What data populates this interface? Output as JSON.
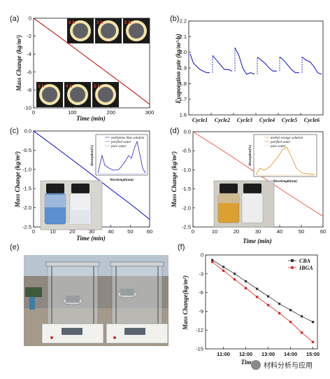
{
  "panels": {
    "a": "(a)",
    "b": "(b)",
    "c": "(c)",
    "d": "(d)",
    "e": "(e)",
    "f": "(f)"
  },
  "watermark": "材料分析与应用",
  "chart_data": [
    {
      "id": "a",
      "type": "line",
      "xlabel": "Time (min)",
      "ylabel": "Mass Change (kg/m²)",
      "xlim": [
        0,
        300
      ],
      "ylim": [
        -10,
        0
      ],
      "xticks": [
        "0",
        "100",
        "200",
        "300"
      ],
      "yticks": [
        "0",
        "-2",
        "-4",
        "-6",
        "-8",
        "-10"
      ],
      "color": "#c0282d",
      "series": [
        {
          "x": [
            0,
            50,
            100,
            150,
            200,
            250,
            300
          ],
          "y": [
            0,
            -1.55,
            -3.15,
            -4.75,
            -6.35,
            -7.95,
            -9.6
          ]
        }
      ],
      "photo_labels": [
        "0 h",
        "1 h",
        "2 h",
        "3 h",
        "4 h",
        "5 h"
      ]
    },
    {
      "id": "b",
      "type": "line",
      "ylabel": "Evaporation rate (kg/m²·h)",
      "ylim": [
        1.6,
        2.2
      ],
      "yticks": [
        "2.2",
        "2.1",
        "2.0",
        "1.9",
        "1.8",
        "1.7",
        "1.6"
      ],
      "categories": [
        "Cycle1",
        "Cycle2",
        "Cycle3",
        "Cycle4",
        "Cycle5",
        "Cycle6"
      ],
      "color": "#1f1fd0",
      "cycles": [
        [
          1.99,
          1.93,
          1.91,
          1.89,
          1.88,
          1.87,
          1.87
        ],
        [
          1.98,
          1.95,
          1.92,
          1.89,
          1.89,
          1.88
        ],
        [
          2.03,
          1.98,
          1.9,
          1.86,
          1.87,
          1.86
        ],
        [
          1.97,
          1.95,
          1.93,
          1.9,
          1.88,
          1.88
        ],
        [
          1.97,
          1.95,
          1.92,
          1.89,
          1.87,
          1.87
        ],
        [
          1.97,
          1.95,
          1.94,
          1.91,
          1.87,
          1.86
        ]
      ]
    },
    {
      "id": "c",
      "type": "line",
      "xlabel": "Time (min)",
      "ylabel": "Mass Change (kg/m²)",
      "xlim": [
        0,
        60
      ],
      "ylim": [
        -2.5,
        0
      ],
      "xticks": [
        "0",
        "10",
        "20",
        "30",
        "40",
        "50",
        "60"
      ],
      "yticks": [
        "0.0",
        "-0.5",
        "-1.0",
        "-1.5",
        "-2.0",
        "-2.5"
      ],
      "color": "#1f1fd0",
      "series": [
        {
          "x": [
            0,
            10,
            20,
            30,
            40,
            50,
            60
          ],
          "y": [
            0,
            -0.37,
            -0.75,
            -1.13,
            -1.52,
            -1.9,
            -2.3
          ]
        }
      ],
      "inset": {
        "xlabel": "Wavelength(nm)",
        "ylabel": "Absorption(%)",
        "xticks": [
          "300",
          "400",
          "500",
          "600",
          "700"
        ],
        "yticks": [
          "0",
          "1",
          "2",
          "3",
          "4"
        ],
        "legend": [
          "methylene blue solution",
          "purified water",
          "pure water"
        ]
      }
    },
    {
      "id": "d",
      "type": "line",
      "xlabel": "Time (min)",
      "ylabel": "Mass Change (kg/m²)",
      "xlim": [
        0,
        60
      ],
      "ylim": [
        -2.5,
        0
      ],
      "xticks": [
        "0",
        "10",
        "20",
        "30",
        "40",
        "50",
        "60"
      ],
      "yticks": [
        "0.0",
        "-0.5",
        "-1.0",
        "-1.5",
        "-2.0",
        "-2.5"
      ],
      "color": "#f07060",
      "series": [
        {
          "x": [
            0,
            10,
            20,
            30,
            40,
            50,
            60
          ],
          "y": [
            0,
            -0.36,
            -0.73,
            -1.11,
            -1.49,
            -1.86,
            -2.22
          ]
        }
      ],
      "inset": {
        "xlabel": "Wavelength(nm)",
        "ylabel": "Absorption(%)",
        "xticks": [
          "300",
          "400",
          "500",
          "600",
          "700"
        ],
        "yticks": [
          "0",
          "1",
          "2",
          "3",
          "4"
        ],
        "legend": [
          "methyl orange solution",
          "purified water",
          "pure water"
        ]
      }
    },
    {
      "id": "f",
      "type": "line",
      "xlabel": "Time",
      "ylabel": "Mass Change(kg/m²)",
      "ylim": [
        -15,
        0
      ],
      "yticks": [
        "0",
        "-3",
        "-6",
        "-9",
        "-12",
        "-15"
      ],
      "categories": [
        "11:00",
        "12:00",
        "13:00",
        "14:00",
        "15:00"
      ],
      "series": [
        {
          "name": "CBA",
          "color": "#333333",
          "x": [
            10.5,
            11,
            11.5,
            12,
            12.5,
            13,
            13.5,
            14,
            14.5,
            15
          ],
          "y": [
            -0.8,
            -1.9,
            -3.0,
            -4.2,
            -5.4,
            -6.6,
            -7.8,
            -8.8,
            -9.8,
            -10.7
          ]
        },
        {
          "name": "IBGA",
          "color": "#e02020",
          "x": [
            10.5,
            11,
            11.5,
            12,
            12.5,
            13,
            13.5,
            14,
            14.5,
            15
          ],
          "y": [
            -1.1,
            -2.5,
            -3.9,
            -5.3,
            -6.7,
            -8.0,
            -9.3,
            -10.7,
            -12.4,
            -13.9
          ]
        }
      ]
    }
  ]
}
